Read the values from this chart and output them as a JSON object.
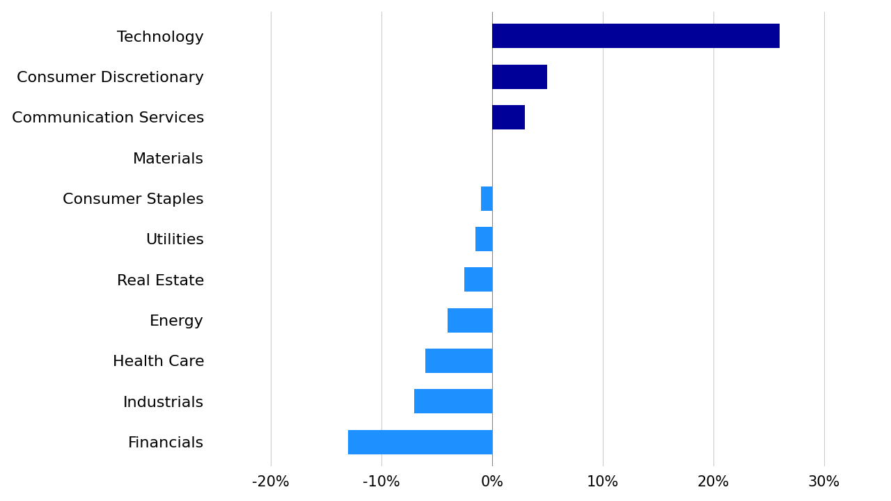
{
  "categories": [
    "Technology",
    "Consumer Discretionary",
    "Communication Services",
    "Materials",
    "Consumer Staples",
    "Utilities",
    "Real Estate",
    "Energy",
    "Health Care",
    "Industrials",
    "Financials"
  ],
  "values": [
    26,
    5,
    3,
    0,
    -1,
    -1.5,
    -2.5,
    -4,
    -6,
    -7,
    -13
  ],
  "colors": [
    "#000099",
    "#000099",
    "#000099",
    "#1E90FF",
    "#1E90FF",
    "#1E90FF",
    "#1E90FF",
    "#1E90FF",
    "#1E90FF",
    "#1E90FF",
    "#1E90FF"
  ],
  "xlim": [
    -25,
    35
  ],
  "xticks": [
    -20,
    -10,
    0,
    10,
    20,
    30
  ],
  "xtick_labels": [
    "-20%",
    "-10%",
    "0%",
    "10%",
    "20%",
    "30%"
  ],
  "background_color": "#ffffff",
  "bar_height": 0.6,
  "label_fontsize": 16,
  "tick_fontsize": 15,
  "grid_color": "#cccccc"
}
